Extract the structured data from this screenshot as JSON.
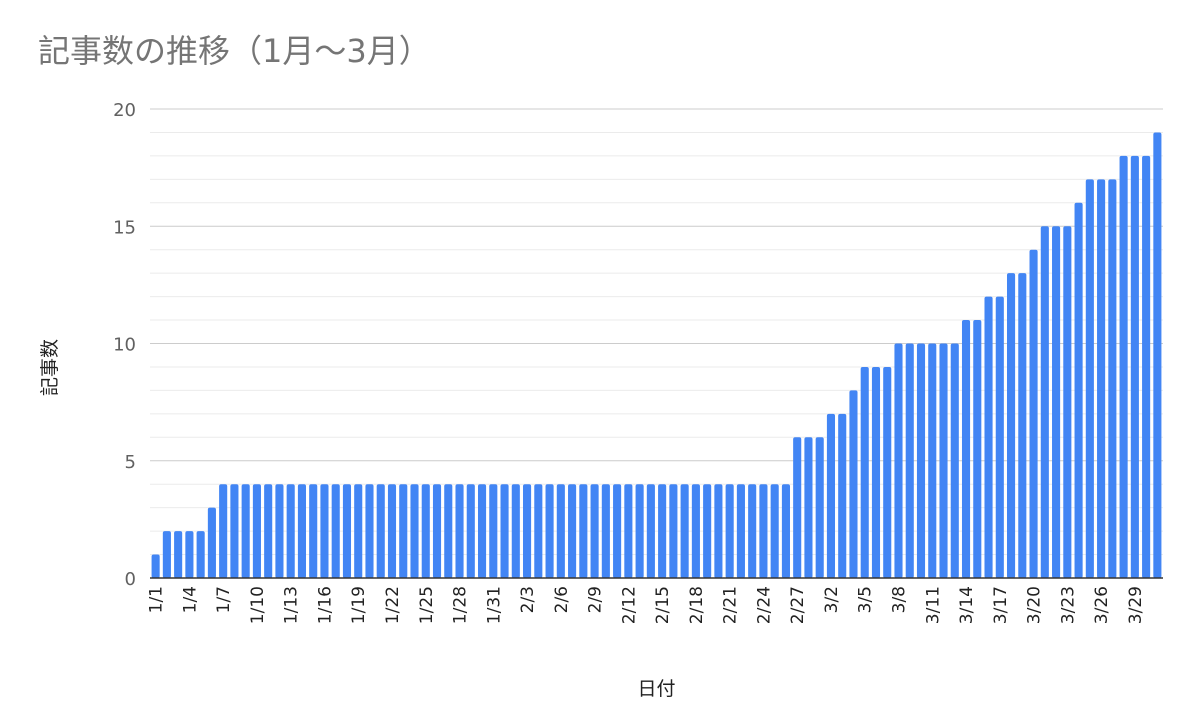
{
  "chart_data": {
    "type": "bar",
    "title": "記事数の推移（1月〜3月）",
    "xlabel": "日付",
    "ylabel": "記事数",
    "ylim": [
      0,
      20
    ],
    "yticks": [
      "0",
      "5",
      "10",
      "15",
      "20"
    ],
    "color": "#4285f4",
    "gridlines": "major and minor, horizontal",
    "tick_labels": [
      "1/1",
      "1/4",
      "1/7",
      "1/10",
      "1/13",
      "1/16",
      "1/19",
      "1/22",
      "1/25",
      "1/28",
      "1/31",
      "2/3",
      "2/6",
      "2/9",
      "2/12",
      "2/15",
      "2/18",
      "2/21",
      "2/24",
      "2/27",
      "3/2",
      "3/5",
      "3/8",
      "3/11",
      "3/14",
      "3/17",
      "3/20",
      "3/23",
      "3/26",
      "3/29"
    ],
    "categories": [
      "1/1",
      "1/2",
      "1/3",
      "1/4",
      "1/5",
      "1/6",
      "1/7",
      "1/8",
      "1/9",
      "1/10",
      "1/11",
      "1/12",
      "1/13",
      "1/14",
      "1/15",
      "1/16",
      "1/17",
      "1/18",
      "1/19",
      "1/20",
      "1/21",
      "1/22",
      "1/23",
      "1/24",
      "1/25",
      "1/26",
      "1/27",
      "1/28",
      "1/29",
      "1/30",
      "1/31",
      "2/1",
      "2/2",
      "2/3",
      "2/4",
      "2/5",
      "2/6",
      "2/7",
      "2/8",
      "2/9",
      "2/10",
      "2/11",
      "2/12",
      "2/13",
      "2/14",
      "2/15",
      "2/16",
      "2/17",
      "2/18",
      "2/19",
      "2/20",
      "2/21",
      "2/22",
      "2/23",
      "2/24",
      "2/25",
      "2/26",
      "2/27",
      "2/28",
      "3/1",
      "3/2",
      "3/3",
      "3/4",
      "3/5",
      "3/6",
      "3/7",
      "3/8",
      "3/9",
      "3/10",
      "3/11",
      "3/12",
      "3/13",
      "3/14",
      "3/15",
      "3/16",
      "3/17",
      "3/18",
      "3/19",
      "3/20",
      "3/21",
      "3/22",
      "3/23",
      "3/24",
      "3/25",
      "3/26",
      "3/27",
      "3/28",
      "3/29",
      "3/30",
      "3/31"
    ],
    "values": [
      1,
      2,
      2,
      2,
      2,
      3,
      4,
      4,
      4,
      4,
      4,
      4,
      4,
      4,
      4,
      4,
      4,
      4,
      4,
      4,
      4,
      4,
      4,
      4,
      4,
      4,
      4,
      4,
      4,
      4,
      4,
      4,
      4,
      4,
      4,
      4,
      4,
      4,
      4,
      4,
      4,
      4,
      4,
      4,
      4,
      4,
      4,
      4,
      4,
      4,
      4,
      4,
      4,
      4,
      4,
      4,
      4,
      6,
      6,
      6,
      7,
      7,
      8,
      9,
      9,
      9,
      10,
      10,
      10,
      10,
      10,
      10,
      11,
      11,
      12,
      12,
      13,
      13,
      14,
      15,
      15,
      15,
      16,
      17,
      17,
      17,
      18,
      18,
      18,
      19
    ]
  }
}
